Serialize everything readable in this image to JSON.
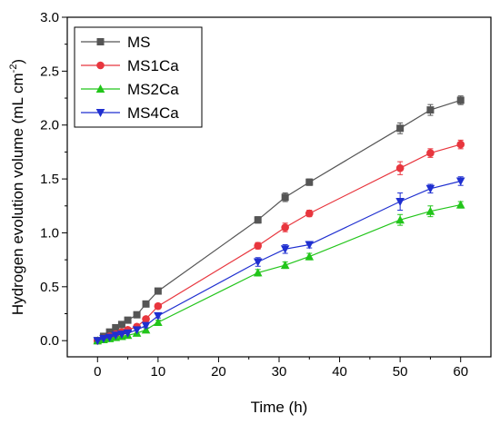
{
  "chart_data": {
    "type": "line",
    "title": "",
    "xlabel": "Time (h)",
    "ylabel_main": "Hydrogen evolution volume (mL cm",
    "ylabel_sup": "-2",
    "ylabel_end": ")",
    "xlim": [
      -5,
      65
    ],
    "ylim": [
      -0.15,
      3.0
    ],
    "xticks": [
      0,
      10,
      20,
      30,
      40,
      50,
      60
    ],
    "yticks": [
      0.0,
      0.5,
      1.0,
      1.5,
      2.0,
      2.5,
      3.0
    ],
    "xtick_labels": [
      "0",
      "10",
      "20",
      "30",
      "40",
      "50",
      "60"
    ],
    "ytick_labels": [
      "0.0",
      "0.5",
      "1.0",
      "1.5",
      "2.0",
      "2.5",
      "3.0"
    ],
    "legend_position": "top-left",
    "series": [
      {
        "name": "MS",
        "color": "#555555",
        "marker": "square",
        "x": [
          0,
          1,
          2,
          3,
          4,
          5,
          6.5,
          8,
          10,
          26.5,
          31,
          35,
          50,
          55,
          60
        ],
        "y": [
          0.0,
          0.04,
          0.08,
          0.12,
          0.15,
          0.19,
          0.24,
          0.34,
          0.46,
          1.12,
          1.33,
          1.47,
          1.97,
          2.14,
          2.23
        ],
        "err": [
          0.01,
          0.01,
          0.01,
          0.01,
          0.01,
          0.01,
          0.01,
          0.02,
          0.02,
          0.03,
          0.04,
          0.03,
          0.05,
          0.05,
          0.04
        ]
      },
      {
        "name": "MS1Ca",
        "color": "#e8363e",
        "marker": "circle",
        "x": [
          0,
          1,
          2,
          3,
          4,
          5,
          6.5,
          8,
          10,
          26.5,
          31,
          35,
          50,
          55,
          60
        ],
        "y": [
          0.0,
          0.02,
          0.04,
          0.06,
          0.08,
          0.1,
          0.13,
          0.2,
          0.32,
          0.88,
          1.05,
          1.18,
          1.6,
          1.74,
          1.82
        ],
        "err": [
          0.01,
          0.01,
          0.01,
          0.01,
          0.01,
          0.01,
          0.01,
          0.02,
          0.02,
          0.03,
          0.04,
          0.03,
          0.06,
          0.04,
          0.04
        ]
      },
      {
        "name": "MS2Ca",
        "color": "#22c51a",
        "marker": "triangle-up",
        "x": [
          0,
          1,
          2,
          3,
          4,
          5,
          6.5,
          8,
          10,
          26.5,
          31,
          35,
          50,
          55,
          60
        ],
        "y": [
          0.0,
          0.01,
          0.02,
          0.03,
          0.04,
          0.05,
          0.07,
          0.1,
          0.17,
          0.63,
          0.7,
          0.78,
          1.12,
          1.2,
          1.26
        ],
        "err": [
          0.01,
          0.01,
          0.01,
          0.01,
          0.01,
          0.01,
          0.01,
          0.02,
          0.02,
          0.03,
          0.03,
          0.03,
          0.05,
          0.05,
          0.03
        ]
      },
      {
        "name": "MS4Ca",
        "color": "#1f2fd0",
        "marker": "triangle-down",
        "x": [
          0,
          1,
          2,
          3,
          4,
          5,
          6.5,
          8,
          10,
          26.5,
          31,
          35,
          50,
          55,
          60
        ],
        "y": [
          0.0,
          0.02,
          0.03,
          0.05,
          0.06,
          0.07,
          0.1,
          0.14,
          0.23,
          0.73,
          0.85,
          0.89,
          1.29,
          1.41,
          1.48
        ],
        "err": [
          0.01,
          0.01,
          0.01,
          0.01,
          0.01,
          0.01,
          0.01,
          0.02,
          0.02,
          0.04,
          0.04,
          0.03,
          0.08,
          0.04,
          0.04
        ]
      }
    ]
  }
}
